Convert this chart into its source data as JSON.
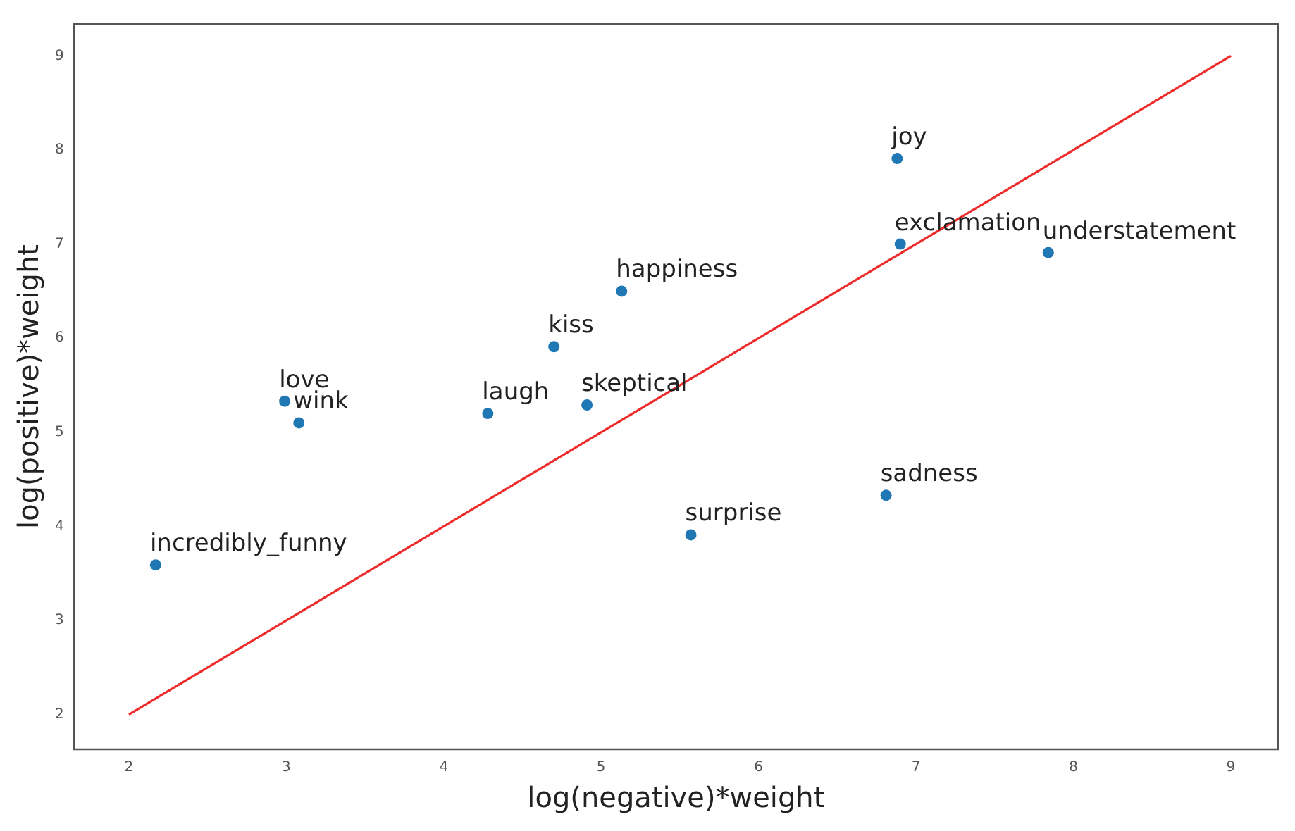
{
  "chart_data": {
    "type": "scatter",
    "xlabel": "log(negative)*weight",
    "ylabel": "log(positive)*weight",
    "xlim": [
      1.65,
      9.3
    ],
    "ylim": [
      1.63,
      9.34
    ],
    "xticks": [
      2,
      3,
      4,
      5,
      6,
      7,
      8,
      9
    ],
    "yticks": [
      2,
      3,
      4,
      5,
      6,
      7,
      8,
      9
    ],
    "grid": false,
    "legend": false,
    "series": [
      {
        "type": "scatter",
        "color": "#1f77b4",
        "marker": "circle",
        "x": [
          2.17,
          2.99,
          3.08,
          4.28,
          4.7,
          4.91,
          5.13,
          5.57,
          6.81,
          6.88,
          6.9,
          7.84
        ],
        "values": [
          3.59,
          5.33,
          5.1,
          5.2,
          5.91,
          5.29,
          6.5,
          3.91,
          4.33,
          7.91,
          7.0,
          6.91
        ]
      },
      {
        "type": "line",
        "color": "#ee2a2a",
        "marker": "none",
        "line_style": "solid",
        "x": [
          2,
          9
        ],
        "values": [
          2,
          9
        ]
      }
    ],
    "annotations": [
      {
        "text": "incredibly_funny",
        "x": 2.17,
        "y": 3.59
      },
      {
        "text": "love",
        "x": 2.99,
        "y": 5.33
      },
      {
        "text": "wink",
        "x": 3.08,
        "y": 5.1
      },
      {
        "text": "laugh",
        "x": 4.28,
        "y": 5.2
      },
      {
        "text": "kiss",
        "x": 4.7,
        "y": 5.91
      },
      {
        "text": "skeptical",
        "x": 4.91,
        "y": 5.29
      },
      {
        "text": "happiness",
        "x": 5.13,
        "y": 6.5
      },
      {
        "text": "surprise",
        "x": 5.57,
        "y": 3.91
      },
      {
        "text": "sadness",
        "x": 6.81,
        "y": 4.33
      },
      {
        "text": "joy",
        "x": 6.88,
        "y": 7.91
      },
      {
        "text": "exclamation",
        "x": 6.9,
        "y": 7.0
      },
      {
        "text": "understatement",
        "x": 7.84,
        "y": 6.91
      }
    ]
  }
}
